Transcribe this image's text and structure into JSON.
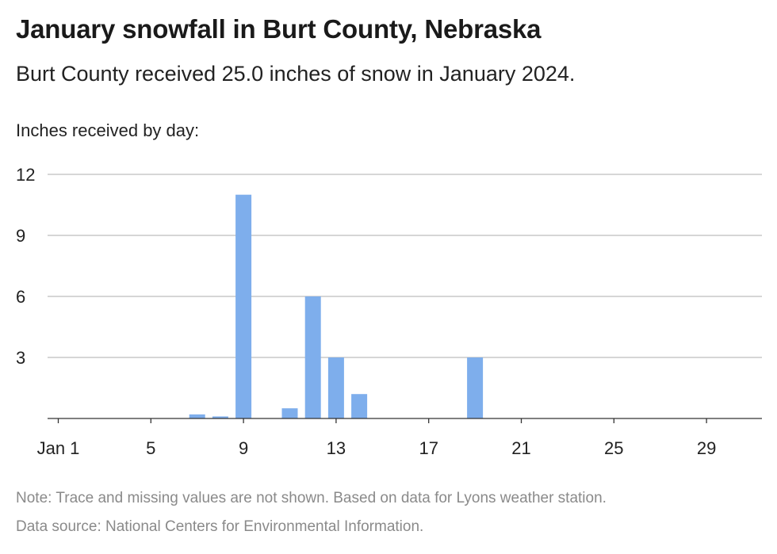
{
  "title": "January snowfall in Burt County, Nebraska",
  "subtitle": "Burt County received 25.0 inches of snow in January 2024.",
  "footer": {
    "note": "Note: Trace and missing values are not shown. Based on data for Lyons weather station.",
    "source": "Data source: National Centers for Environmental Information."
  },
  "colors": {
    "bar": "#7eaeec",
    "grid": "#bdbdbd",
    "axis": "#333333"
  },
  "chart_data": {
    "type": "bar",
    "title": "January snowfall in Burt County, Nebraska",
    "ylabel": "Inches received by day:",
    "xlabel": "",
    "x_domain": [
      1,
      31
    ],
    "ylim": [
      0,
      12
    ],
    "yticks": [
      3,
      6,
      9,
      12
    ],
    "xticks": [
      {
        "day": 1,
        "label": "Jan 1"
      },
      {
        "day": 5,
        "label": "5"
      },
      {
        "day": 9,
        "label": "9"
      },
      {
        "day": 13,
        "label": "13"
      },
      {
        "day": 17,
        "label": "17"
      },
      {
        "day": 21,
        "label": "21"
      },
      {
        "day": 25,
        "label": "25"
      },
      {
        "day": 29,
        "label": "29"
      }
    ],
    "days": [
      7,
      8,
      9,
      11,
      12,
      13,
      14,
      19
    ],
    "values": [
      0.2,
      0.1,
      11.0,
      0.5,
      6.0,
      3.0,
      1.2,
      3.0
    ],
    "grid": true,
    "legend": "none"
  }
}
